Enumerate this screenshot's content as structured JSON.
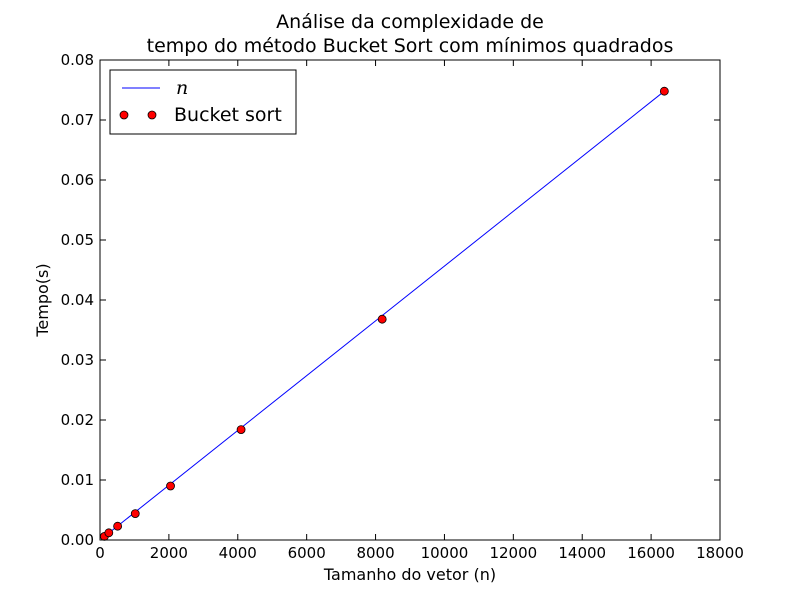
{
  "chart_data": {
    "type": "line",
    "title_lines": [
      "Análise da complexidade de",
      "tempo do método Bucket Sort com mínimos quadrados"
    ],
    "xlabel": "Tamanho do vetor (n)",
    "ylabel": "Tempo(s)",
    "xlim": [
      0,
      18000
    ],
    "ylim": [
      0,
      0.08
    ],
    "xticks": [
      0,
      2000,
      4000,
      6000,
      8000,
      10000,
      12000,
      14000,
      16000,
      18000
    ],
    "xtick_labels": [
      "0",
      "2000",
      "4000",
      "6000",
      "8000",
      "10000",
      "12000",
      "14000",
      "16000",
      "18000"
    ],
    "yticks": [
      0,
      0.01,
      0.02,
      0.03,
      0.04,
      0.05,
      0.06,
      0.07,
      0.08
    ],
    "ytick_labels": [
      "0.00",
      "0.01",
      "0.02",
      "0.03",
      "0.04",
      "0.05",
      "0.06",
      "0.07",
      "0.08"
    ],
    "grid": false,
    "legend_position": "top-left",
    "series": [
      {
        "name": "n",
        "kind": "line",
        "color": "#0000ff",
        "x": [
          128,
          16384
        ],
        "y": [
          0.00058,
          0.0748
        ]
      },
      {
        "name": "Bucket sort",
        "kind": "scatter",
        "color": "#ff0000",
        "x": [
          128,
          256,
          512,
          1024,
          2048,
          4096,
          8192,
          16384
        ],
        "y": [
          0.0006,
          0.0012,
          0.0023,
          0.0044,
          0.009,
          0.0184,
          0.0368,
          0.0748
        ]
      }
    ]
  }
}
